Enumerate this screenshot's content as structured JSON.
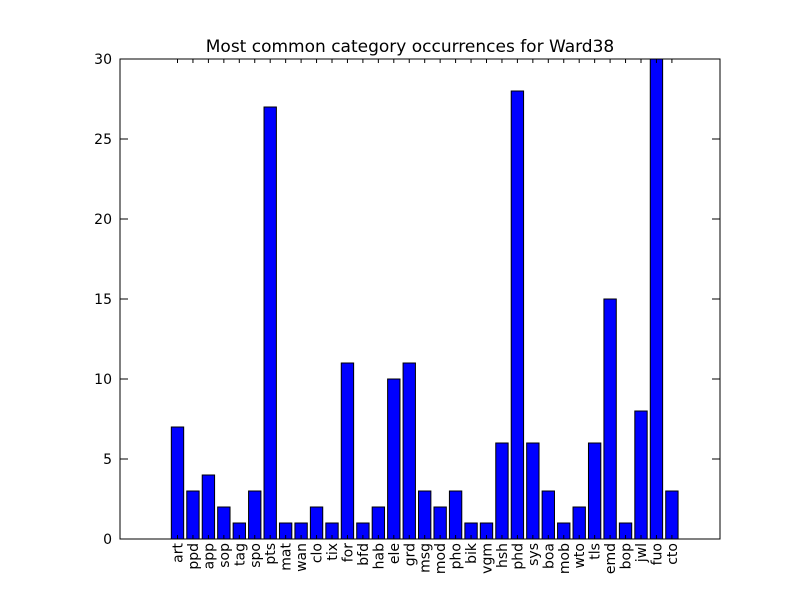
{
  "chart_data": {
    "type": "bar",
    "title": "Most common category occurrences for Ward38",
    "xlabel": "",
    "ylabel": "",
    "ylim": [
      0,
      30
    ],
    "yticks": [
      "0",
      "5",
      "10",
      "15",
      "20",
      "25",
      "30"
    ],
    "grid": false,
    "bar_color": "#0000ff",
    "categories": [
      "art",
      "ppd",
      "app",
      "sop",
      "tag",
      "spo",
      "pts",
      "mat",
      "wan",
      "clo",
      "tix",
      "for",
      "bfd",
      "hab",
      "ele",
      "grd",
      "msg",
      "mod",
      "pho",
      "bik",
      "vgm",
      "hsh",
      "phd",
      "sys",
      "boa",
      "mob",
      "wto",
      "tls",
      "emd",
      "bop",
      "jwl",
      "fuo",
      "cto"
    ],
    "values": [
      7,
      3,
      4,
      2,
      1,
      3,
      27,
      1,
      1,
      2,
      1,
      11,
      1,
      2,
      10,
      11,
      3,
      2,
      3,
      1,
      1,
      6,
      28,
      6,
      3,
      1,
      2,
      6,
      15,
      1,
      8,
      30,
      3
    ]
  }
}
